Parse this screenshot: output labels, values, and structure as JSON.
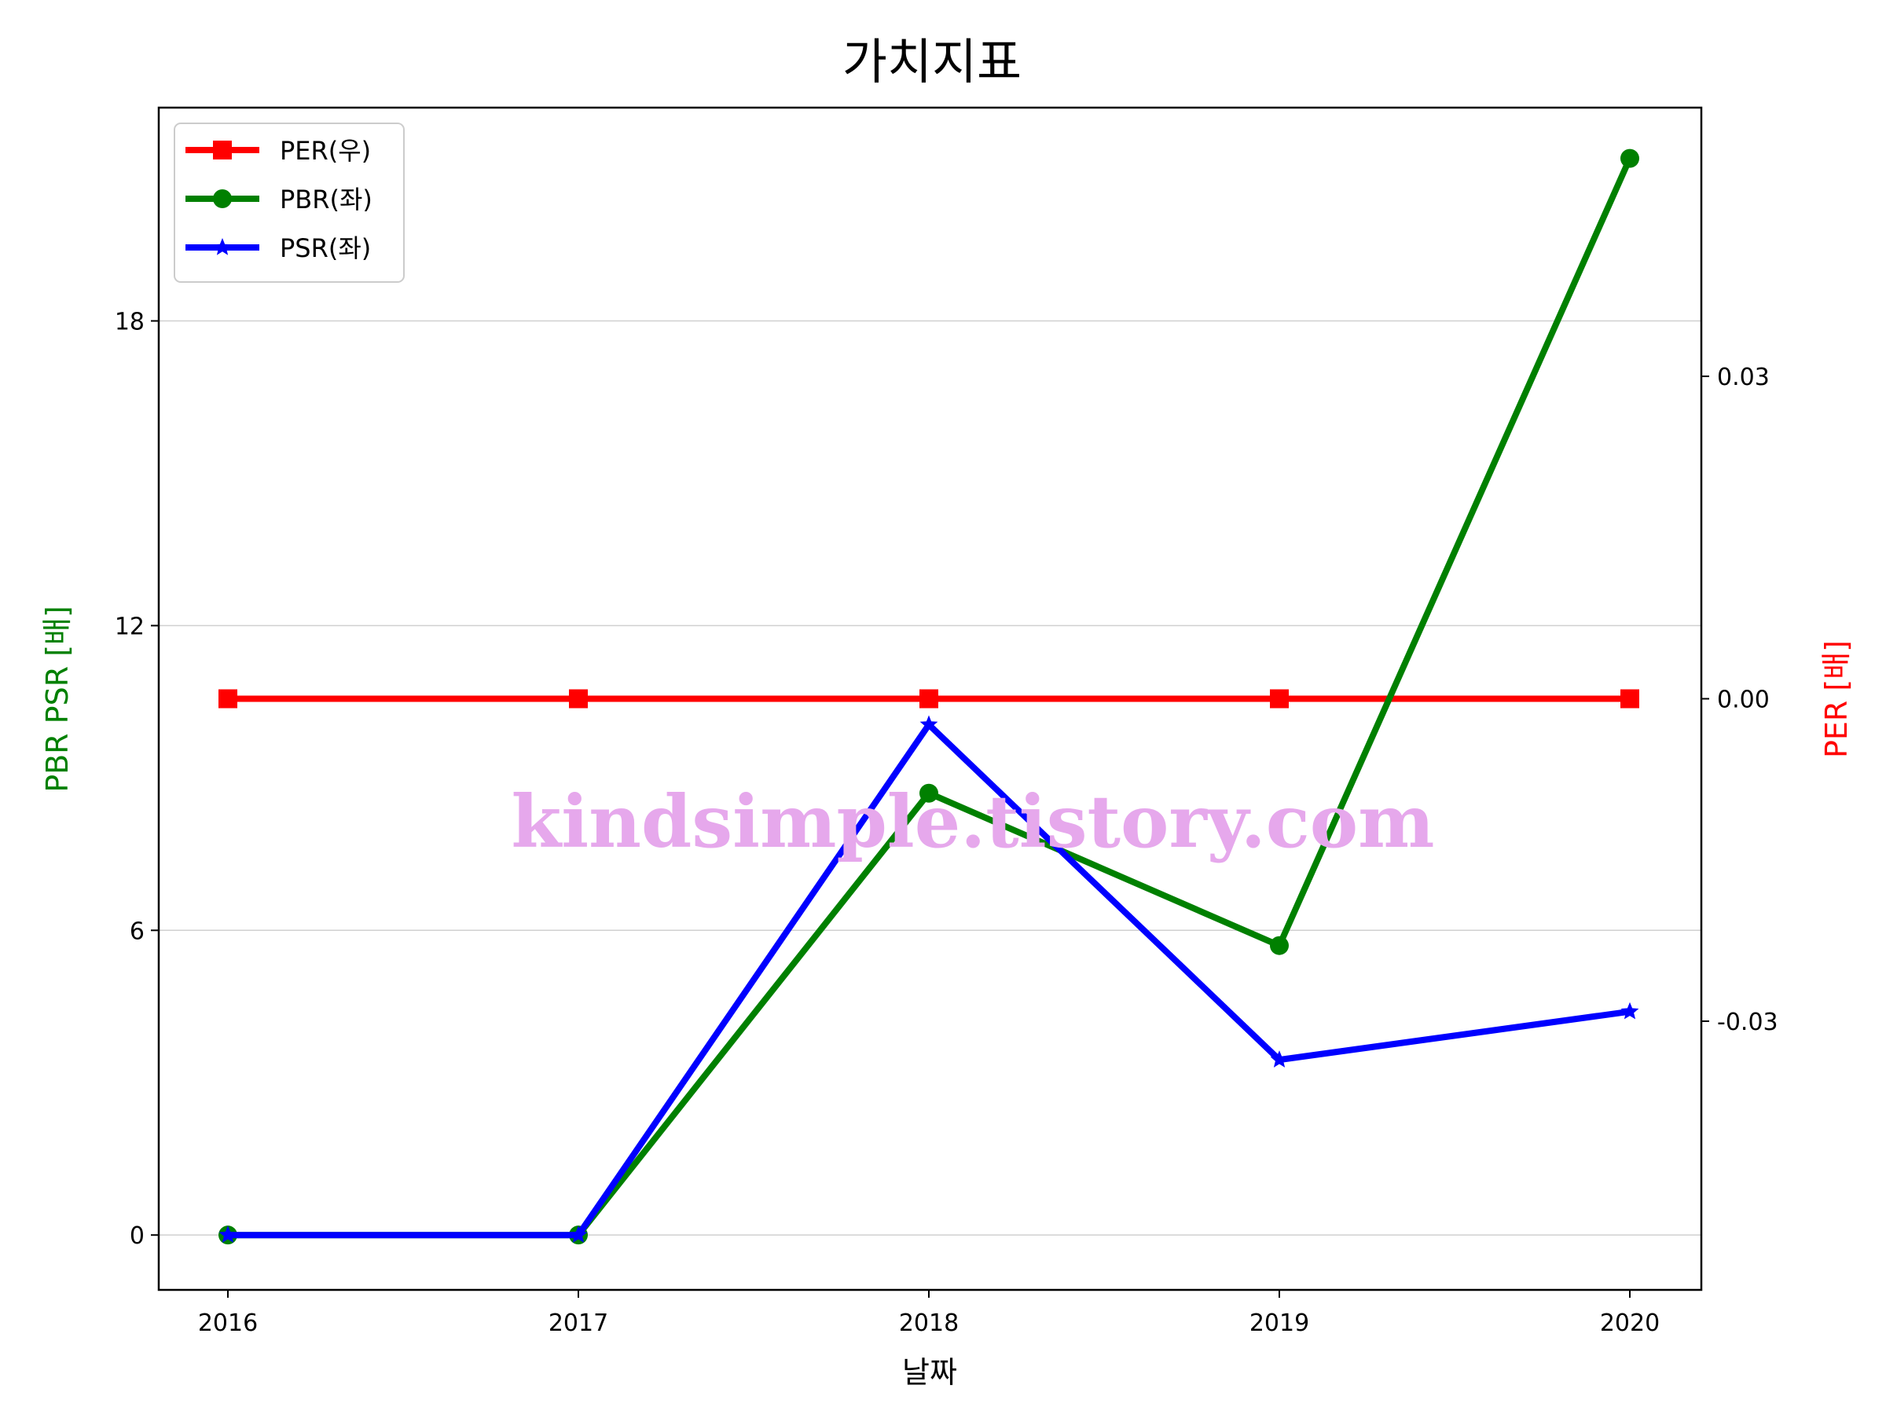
{
  "chart_data": {
    "type": "line",
    "title": "가치지표",
    "xlabel": "날짜",
    "ylabel_left": "PBR PSR [배]",
    "ylabel_right": "PER [배]",
    "categories": [
      "2016",
      "2017",
      "2018",
      "2019",
      "2020"
    ],
    "ylim_left": [
      -1.08,
      22.2
    ],
    "yticks_left": [
      0,
      6,
      12,
      18
    ],
    "ylim_right": [
      -0.055,
      0.055
    ],
    "yticks_right": [
      -0.03,
      0.0,
      0.03
    ],
    "ytick_labels_right": [
      "-0.03",
      "0.00",
      "0.03"
    ],
    "grid": "horizontal",
    "legend_position": "top-left",
    "series": [
      {
        "name": "PER(우)",
        "axis": "right",
        "color": "#ff0000",
        "marker": "square",
        "values": [
          0,
          0,
          0,
          0,
          0
        ]
      },
      {
        "name": "PBR(좌)",
        "axis": "left",
        "color": "#008000",
        "marker": "circle",
        "values": [
          0,
          0,
          8.7,
          5.7,
          21.2
        ]
      },
      {
        "name": "PSR(좌)",
        "axis": "left",
        "color": "#0000ff",
        "marker": "star",
        "values": [
          0,
          0,
          10.05,
          3.45,
          4.4
        ]
      }
    ],
    "watermark": "kindsimple.tistory.com"
  }
}
